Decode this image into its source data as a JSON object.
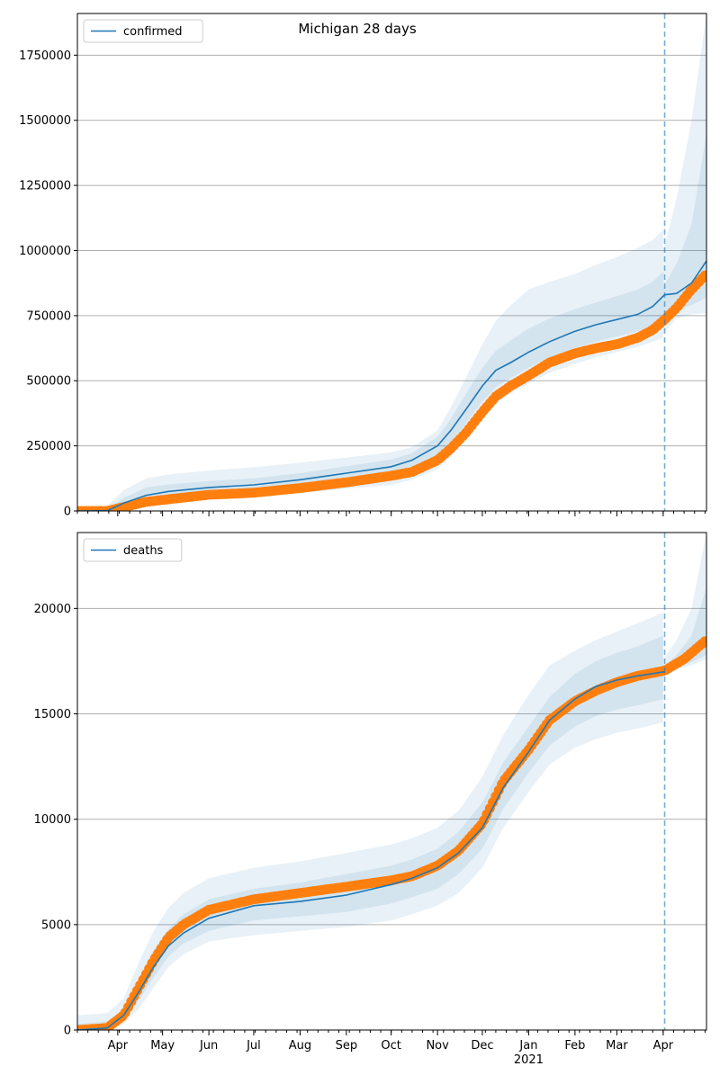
{
  "figure": {
    "title": "Michigan 28 days"
  },
  "colors": {
    "model": "#1f77b4",
    "observed": "#ff7f0e",
    "band": "#1f77b4",
    "grid": "#b0b0b0",
    "forecast_line": "#1f77b4"
  },
  "x_axis": {
    "start_date": "2020-03-05",
    "end_date": "2021-04-30",
    "months": [
      {
        "date": "2020-04-01",
        "label": "Apr"
      },
      {
        "date": "2020-05-01",
        "label": "May"
      },
      {
        "date": "2020-06-01",
        "label": "Jun"
      },
      {
        "date": "2020-07-01",
        "label": "Jul"
      },
      {
        "date": "2020-08-01",
        "label": "Aug"
      },
      {
        "date": "2020-09-01",
        "label": "Sep"
      },
      {
        "date": "2020-10-01",
        "label": "Oct"
      },
      {
        "date": "2020-11-01",
        "label": "Nov"
      },
      {
        "date": "2020-12-01",
        "label": "Dec"
      },
      {
        "date": "2021-01-01",
        "label": "Jan"
      },
      {
        "date": "2021-02-01",
        "label": "Feb"
      },
      {
        "date": "2021-03-01",
        "label": "Mar"
      },
      {
        "date": "2021-04-01",
        "label": "Apr"
      }
    ],
    "year_label": {
      "date": "2021-01-01",
      "label": "2021"
    },
    "forecast_start": "2021-04-02"
  },
  "chart_data": [
    {
      "type": "line",
      "legend": "confirmed",
      "legend_position": "upper left",
      "grid": true,
      "ylim": [
        0,
        1910000
      ],
      "yticks": [
        0,
        250000,
        500000,
        750000,
        1000000,
        1250000,
        1500000,
        1750000
      ],
      "ytick_labels": [
        "0",
        "250000",
        "500000",
        "750000",
        "1000000",
        "1250000",
        "1500000",
        "1750000"
      ],
      "model": {
        "name": "confirmed",
        "x": [
          "2020-03-05",
          "2020-03-25",
          "2020-04-05",
          "2020-04-20",
          "2020-05-05",
          "2020-06-01",
          "2020-07-01",
          "2020-08-01",
          "2020-09-01",
          "2020-10-01",
          "2020-10-15",
          "2020-11-01",
          "2020-11-10",
          "2020-11-20",
          "2020-12-01",
          "2020-12-10",
          "2020-12-20",
          "2021-01-01",
          "2021-01-15",
          "2021-02-01",
          "2021-02-15",
          "2021-03-01",
          "2021-03-15",
          "2021-03-25",
          "2021-04-02",
          "2021-04-10",
          "2021-04-20",
          "2021-04-30"
        ],
        "y": [
          0,
          1000,
          30000,
          60000,
          75000,
          90000,
          100000,
          120000,
          145000,
          170000,
          195000,
          250000,
          310000,
          390000,
          480000,
          540000,
          570000,
          610000,
          650000,
          690000,
          715000,
          735000,
          755000,
          785000,
          830000,
          835000,
          875000,
          960000
        ]
      },
      "observed": {
        "name": "observed",
        "x": [
          "2020-03-05",
          "2020-03-25",
          "2020-04-05",
          "2020-04-20",
          "2020-05-05",
          "2020-06-01",
          "2020-07-01",
          "2020-08-01",
          "2020-09-01",
          "2020-10-01",
          "2020-10-15",
          "2020-11-01",
          "2020-11-10",
          "2020-11-20",
          "2020-12-01",
          "2020-12-10",
          "2020-12-20",
          "2021-01-01",
          "2021-01-15",
          "2021-02-01",
          "2021-02-15",
          "2021-03-01",
          "2021-03-15",
          "2021-03-25",
          "2021-04-02",
          "2021-04-10",
          "2021-04-20",
          "2021-04-30"
        ],
        "y": [
          0,
          0,
          15000,
          35000,
          45000,
          62000,
          70000,
          88000,
          110000,
          135000,
          150000,
          195000,
          240000,
          300000,
          380000,
          440000,
          480000,
          520000,
          570000,
          605000,
          625000,
          640000,
          665000,
          695000,
          735000,
          780000,
          850000,
          910000
        ]
      },
      "bands": [
        {
          "name": "outer",
          "x": [
            "2020-03-05",
            "2020-03-25",
            "2020-04-05",
            "2020-04-20",
            "2020-05-05",
            "2020-06-01",
            "2020-07-01",
            "2020-08-01",
            "2020-09-01",
            "2020-10-01",
            "2020-10-15",
            "2020-11-01",
            "2020-11-10",
            "2020-11-20",
            "2020-12-01",
            "2020-12-10",
            "2020-12-20",
            "2021-01-01",
            "2021-01-15",
            "2021-02-01",
            "2021-02-15",
            "2021-03-01",
            "2021-03-15",
            "2021-03-25",
            "2021-04-01"
          ],
          "lo": [
            0,
            0,
            10000,
            30000,
            38000,
            48000,
            55000,
            68000,
            85000,
            100000,
            120000,
            160000,
            210000,
            280000,
            360000,
            410000,
            450000,
            490000,
            530000,
            565000,
            590000,
            610000,
            630000,
            650000,
            665000
          ],
          "hi": [
            0,
            20000,
            80000,
            125000,
            140000,
            155000,
            168000,
            185000,
            205000,
            225000,
            245000,
            310000,
            400000,
            510000,
            640000,
            730000,
            790000,
            850000,
            880000,
            910000,
            945000,
            975000,
            1010000,
            1040000,
            1080000
          ]
        },
        {
          "name": "inner",
          "x": [
            "2020-03-05",
            "2020-03-25",
            "2020-04-05",
            "2020-04-20",
            "2020-05-05",
            "2020-06-01",
            "2020-07-01",
            "2020-08-01",
            "2020-09-01",
            "2020-10-01",
            "2020-10-15",
            "2020-11-01",
            "2020-11-10",
            "2020-11-20",
            "2020-12-01",
            "2020-12-10",
            "2020-12-20",
            "2021-01-01",
            "2021-01-15",
            "2021-02-01",
            "2021-02-15",
            "2021-03-01",
            "2021-03-15",
            "2021-03-25",
            "2021-04-01"
          ],
          "lo": [
            0,
            0,
            20000,
            45000,
            58000,
            72000,
            80000,
            95000,
            118000,
            140000,
            162000,
            210000,
            265000,
            335000,
            420000,
            475000,
            510000,
            550000,
            590000,
            625000,
            650000,
            670000,
            690000,
            715000,
            740000
          ],
          "hi": [
            0,
            10000,
            50000,
            90000,
            102000,
            115000,
            125000,
            145000,
            172000,
            198000,
            222000,
            285000,
            355000,
            450000,
            550000,
            615000,
            655000,
            700000,
            740000,
            775000,
            800000,
            825000,
            850000,
            880000,
            920000
          ]
        },
        {
          "name": "forecast-outer",
          "x": [
            "2021-04-01",
            "2021-04-10",
            "2021-04-20",
            "2021-04-30"
          ],
          "lo": [
            680000,
            740000,
            755000,
            760000
          ],
          "hi": [
            1000000,
            1200000,
            1500000,
            1910000
          ]
        },
        {
          "name": "forecast-inner",
          "x": [
            "2021-04-01",
            "2021-04-10",
            "2021-04-20",
            "2021-04-30"
          ],
          "lo": [
            720000,
            770000,
            790000,
            820000
          ],
          "hi": [
            860000,
            950000,
            1100000,
            1450000
          ]
        }
      ]
    },
    {
      "type": "line",
      "legend": "deaths",
      "legend_position": "upper left",
      "grid": true,
      "ylim": [
        0,
        23600
      ],
      "yticks": [
        0,
        5000,
        10000,
        15000,
        20000
      ],
      "ytick_labels": [
        "0",
        "5000",
        "10000",
        "15000",
        "20000"
      ],
      "model": {
        "name": "deaths",
        "x": [
          "2020-03-05",
          "2020-03-25",
          "2020-04-05",
          "2020-04-15",
          "2020-04-25",
          "2020-05-05",
          "2020-05-15",
          "2020-06-01",
          "2020-07-01",
          "2020-08-01",
          "2020-09-01",
          "2020-10-01",
          "2020-10-15",
          "2020-11-01",
          "2020-11-15",
          "2020-12-01",
          "2020-12-15",
          "2021-01-01",
          "2021-01-15",
          "2021-02-01",
          "2021-02-15",
          "2021-03-01",
          "2021-03-15",
          "2021-04-02"
        ],
        "y": [
          0,
          100,
          700,
          1800,
          3000,
          4000,
          4600,
          5300,
          5900,
          6100,
          6400,
          6900,
          7200,
          7700,
          8400,
          9600,
          11500,
          13200,
          14700,
          15700,
          16300,
          16600,
          16800,
          17000
        ]
      },
      "observed": {
        "name": "observed",
        "x": [
          "2020-03-05",
          "2020-03-25",
          "2020-04-05",
          "2020-04-15",
          "2020-04-25",
          "2020-05-05",
          "2020-05-15",
          "2020-06-01",
          "2020-07-01",
          "2020-08-01",
          "2020-09-01",
          "2020-10-01",
          "2020-10-15",
          "2020-11-01",
          "2020-11-15",
          "2020-12-01",
          "2020-12-15",
          "2021-01-01",
          "2021-01-15",
          "2021-02-01",
          "2021-02-15",
          "2021-03-01",
          "2021-03-15",
          "2021-04-02",
          "2021-04-15",
          "2021-04-30"
        ],
        "y": [
          0,
          100,
          700,
          2000,
          3300,
          4400,
          5000,
          5700,
          6200,
          6500,
          6800,
          7100,
          7300,
          7800,
          8500,
          9800,
          11800,
          13300,
          14700,
          15600,
          16100,
          16500,
          16800,
          17050,
          17600,
          18500
        ]
      },
      "bands": [
        {
          "name": "outer",
          "x": [
            "2020-03-05",
            "2020-03-25",
            "2020-04-05",
            "2020-04-15",
            "2020-04-25",
            "2020-05-05",
            "2020-05-15",
            "2020-06-01",
            "2020-07-01",
            "2020-08-01",
            "2020-09-01",
            "2020-10-01",
            "2020-10-15",
            "2020-11-01",
            "2020-11-15",
            "2020-12-01",
            "2020-12-15",
            "2021-01-01",
            "2021-01-15",
            "2021-02-01",
            "2021-02-15",
            "2021-03-01",
            "2021-03-15",
            "2021-04-01"
          ],
          "lo": [
            0,
            0,
            300,
            1000,
            2000,
            3000,
            3600,
            4200,
            4500,
            4700,
            4900,
            5200,
            5500,
            5900,
            6500,
            7700,
            9600,
            11300,
            12600,
            13400,
            13800,
            14100,
            14300,
            14600
          ],
          "hi": [
            700,
            800,
            1500,
            3200,
            4700,
            5800,
            6500,
            7200,
            7700,
            8000,
            8400,
            8800,
            9100,
            9600,
            10400,
            12000,
            14000,
            15900,
            17300,
            18000,
            18500,
            18900,
            19300,
            19800
          ]
        },
        {
          "name": "inner",
          "x": [
            "2020-03-05",
            "2020-03-25",
            "2020-04-05",
            "2020-04-15",
            "2020-04-25",
            "2020-05-05",
            "2020-05-15",
            "2020-06-01",
            "2020-07-01",
            "2020-08-01",
            "2020-09-01",
            "2020-10-01",
            "2020-10-15",
            "2020-11-01",
            "2020-11-15",
            "2020-12-01",
            "2020-12-15",
            "2021-01-01",
            "2021-01-15",
            "2021-02-01",
            "2021-02-15",
            "2021-03-01",
            "2021-03-15",
            "2021-04-01"
          ],
          "lo": [
            0,
            50,
            500,
            1400,
            2500,
            3500,
            4100,
            4700,
            5200,
            5400,
            5600,
            6000,
            6300,
            6700,
            7400,
            8600,
            10500,
            12200,
            13500,
            14400,
            14900,
            15200,
            15400,
            15700
          ],
          "hi": [
            300,
            400,
            1000,
            2400,
            3800,
            4800,
            5500,
            6200,
            6700,
            7000,
            7400,
            7800,
            8100,
            8600,
            9400,
            10800,
            12700,
            14400,
            15800,
            16900,
            17500,
            17900,
            18200,
            18700
          ]
        },
        {
          "name": "forecast-outer",
          "x": [
            "2021-04-01",
            "2021-04-10",
            "2021-04-20",
            "2021-04-30"
          ],
          "lo": [
            16900,
            17100,
            17300,
            17600
          ],
          "hi": [
            17600,
            18500,
            20000,
            23600
          ]
        },
        {
          "name": "forecast-inner",
          "x": [
            "2021-04-01",
            "2021-04-10",
            "2021-04-20",
            "2021-04-30"
          ],
          "lo": [
            16950,
            17200,
            17450,
            17800
          ],
          "hi": [
            17200,
            17800,
            18700,
            21000
          ]
        }
      ]
    }
  ]
}
